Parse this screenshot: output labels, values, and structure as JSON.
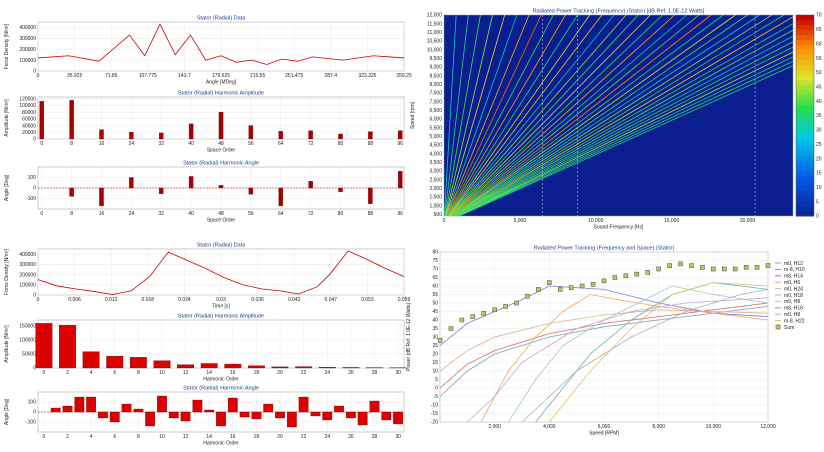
{
  "chart_data": [
    {
      "type": "line",
      "title": "Stator (Radial) Data",
      "xlabel": "Angle [MDeg]",
      "ylabel": "Force Density [N/m²]",
      "xticks": [
        "0",
        "35.925",
        "71.85",
        "107.775",
        "143.7",
        "179.625",
        "215.55",
        "251.475",
        "287.4",
        "323.325",
        "359.25"
      ],
      "yticks": [
        "400000",
        "300000",
        "200000",
        "100000",
        "0"
      ],
      "xlim": [
        0,
        359.25
      ],
      "ylim": [
        0,
        450000
      ],
      "grid": true,
      "series": [
        {
          "color": "#cc0000",
          "x": [
            0,
            4,
            8,
            12,
            14,
            16,
            18,
            20,
            22,
            24,
            26,
            28,
            30,
            32,
            34,
            36,
            40,
            44,
            48
          ],
          "y": [
            120000,
            140000,
            90000,
            330000,
            140000,
            430000,
            150000,
            330000,
            100000,
            140000,
            80000,
            100000,
            60000,
            110000,
            90000,
            130000,
            100000,
            140000,
            120000
          ]
        }
      ]
    },
    {
      "type": "bar",
      "title": "Stator (Radial) Harmonic Amplitude",
      "xlabel": "Space Order",
      "ylabel": "Amplitude [N/m²]",
      "xticks": [
        "0",
        "8",
        "16",
        "24",
        "32",
        "40",
        "48",
        "56",
        "64",
        "72",
        "80",
        "88",
        "96"
      ],
      "yticks": [
        "120000",
        "100000",
        "80000",
        "60000",
        "40000",
        "20000",
        "0"
      ],
      "xlim": [
        -1,
        97
      ],
      "ylim": [
        0,
        125000
      ],
      "grid": true,
      "color": "#aa0000",
      "x": [
        0,
        8,
        16,
        24,
        32,
        40,
        48,
        56,
        64,
        72,
        80,
        88,
        96
      ],
      "values": [
        112000,
        115000,
        28000,
        20000,
        18000,
        45000,
        80000,
        40000,
        23000,
        25000,
        15000,
        22000,
        25000
      ]
    },
    {
      "type": "bar",
      "title": "Stator (Radial) Harmonic Angle",
      "xlabel": "Space Order",
      "ylabel": "Angle [Deg]",
      "xticks": [
        "0",
        "8",
        "16",
        "24",
        "32",
        "40",
        "48",
        "56",
        "64",
        "72",
        "80",
        "88",
        "96"
      ],
      "yticks": [
        "100",
        "0",
        "-100"
      ],
      "xlim": [
        -1,
        97
      ],
      "ylim": [
        -200,
        200
      ],
      "grid": true,
      "color": "#aa0000",
      "x": [
        8,
        16,
        24,
        32,
        40,
        48,
        56,
        64,
        72,
        80,
        88,
        96
      ],
      "values": [
        -80,
        -170,
        100,
        -55,
        110,
        25,
        -60,
        -170,
        65,
        -35,
        -150,
        160
      ]
    },
    {
      "type": "line",
      "title": "Stator (Radial) Data",
      "xlabel": "Time [s]",
      "ylabel": "Force Density [N/m²]",
      "xticks": [
        "0",
        "0.006",
        "0.012",
        "0.018",
        "0.024",
        "0.03",
        "0.036",
        "0.042",
        "0.047",
        "0.053",
        "0.059"
      ],
      "yticks": [
        "400000",
        "300000",
        "200000",
        "100000",
        "0"
      ],
      "xlim": [
        0,
        0.059
      ],
      "ylim": [
        0,
        450000
      ],
      "grid": true,
      "series": [
        {
          "color": "#cc0000",
          "x": [
            0,
            0.003,
            0.006,
            0.009,
            0.012,
            0.015,
            0.018,
            0.021,
            0.024,
            0.027,
            0.03,
            0.033,
            0.036,
            0.039,
            0.042,
            0.045,
            0.047,
            0.05,
            0.053,
            0.056,
            0.059
          ],
          "y": [
            150000,
            90000,
            60000,
            35000,
            5000,
            40000,
            180000,
            420000,
            340000,
            260000,
            170000,
            100000,
            60000,
            40000,
            10000,
            80000,
            200000,
            430000,
            350000,
            260000,
            180000
          ]
        }
      ]
    },
    {
      "type": "bar",
      "title": "Stator (Radial) Harmonic Amplitude",
      "xlabel": "Harmonic Order",
      "ylabel": "Amplitude [N/m²]",
      "xticks": [
        "0",
        "2",
        "4",
        "6",
        "8",
        "10",
        "12",
        "14",
        "16",
        "18",
        "20",
        "22",
        "24",
        "26",
        "28",
        "30"
      ],
      "yticks": [
        "150000",
        "100000",
        "50000",
        "0"
      ],
      "xlim": [
        -0.5,
        30.5
      ],
      "ylim": [
        0,
        170000
      ],
      "grid": true,
      "color": "#dd0000",
      "x": [
        0,
        2,
        4,
        6,
        8,
        10,
        12,
        14,
        16,
        18,
        20,
        22,
        24,
        26,
        28,
        30
      ],
      "values": [
        158000,
        152000,
        58000,
        42000,
        38000,
        26000,
        12000,
        16000,
        14000,
        8000,
        4000,
        5000,
        3000,
        2000,
        1500,
        1000
      ]
    },
    {
      "type": "bar",
      "title": "Stator (Radial) Harmonic Angle",
      "xlabel": "Harmonic Order",
      "ylabel": "Angle [Deg]",
      "xticks": [
        "0",
        "2",
        "4",
        "6",
        "8",
        "10",
        "12",
        "14",
        "16",
        "18",
        "20",
        "22",
        "24",
        "26",
        "28",
        "30"
      ],
      "yticks": [
        "100",
        "0",
        "-100"
      ],
      "xlim": [
        -0.5,
        30.5
      ],
      "ylim": [
        -200,
        200
      ],
      "grid": true,
      "color": "#dd0000",
      "x": [
        1,
        2,
        3,
        4,
        5,
        6,
        7,
        8,
        9,
        10,
        11,
        12,
        13,
        14,
        15,
        16,
        17,
        18,
        19,
        20,
        21,
        22,
        23,
        24,
        25,
        26,
        27,
        28,
        29,
        30
      ],
      "values": [
        40,
        60,
        150,
        150,
        -60,
        -100,
        80,
        30,
        -140,
        160,
        -60,
        -90,
        120,
        20,
        -140,
        140,
        -50,
        -70,
        80,
        -60,
        -150,
        150,
        -40,
        -80,
        60,
        -60,
        -130,
        110,
        -80,
        -120
      ]
    },
    {
      "type": "heatmap",
      "title": "Radiated Power Tracking (Frequency) (Stator) [dB Ref. 1.0E-12 Watts]",
      "xlabel": "Sound Frequency [Hz]",
      "ylabel": "Speed [rpm]",
      "xticks": [
        "0",
        "5,000",
        "10,000",
        "15,000",
        "20,000"
      ],
      "yticks": [
        "12,000",
        "11,500",
        "11,000",
        "10,500",
        "10,000",
        "9,500",
        "9,000",
        "8,500",
        "8,000",
        "7,500",
        "7,000",
        "6,500",
        "6,000",
        "5,500",
        "5,000",
        "4,500",
        "4,000",
        "3,500",
        "3,000",
        "2,500",
        "2,000",
        "1,500",
        "1,000",
        "500"
      ],
      "xlim": [
        0,
        23000
      ],
      "ylim": [
        400,
        12000
      ],
      "colorbar_ticks": [
        "70",
        "65",
        "60",
        "55",
        "50",
        "45",
        "40",
        "35",
        "30",
        "25",
        "20",
        "15",
        "10",
        "5",
        "0"
      ],
      "colorbar_range": [
        0,
        70
      ],
      "background": "#0b1e8f",
      "orders_per_rev": [
        4,
        8,
        12,
        16,
        20,
        24,
        28,
        32,
        36,
        40,
        44,
        48,
        52,
        56,
        60,
        64,
        68,
        72,
        76,
        80,
        84,
        88,
        92,
        96,
        100,
        104,
        108,
        112,
        116,
        120,
        124,
        128,
        132,
        136,
        140,
        144,
        148,
        152
      ],
      "line_levels_db": [
        30,
        35,
        40,
        45,
        50,
        30,
        55,
        62,
        40,
        58,
        36,
        48,
        52,
        30,
        45,
        40,
        50,
        38,
        55,
        33,
        42,
        60,
        35,
        48,
        40,
        30,
        45,
        38,
        52,
        35,
        42,
        30,
        40,
        36,
        48,
        32,
        38,
        35
      ],
      "marker_frequencies": [
        6500,
        8800,
        20500
      ]
    },
    {
      "type": "line",
      "title": "Radiated Power Tracking (Frequency and Space) (Stator)",
      "xlabel": "Speed [RPM]",
      "ylabel": "Power [dB Ref. 1.0E-12 Watts]",
      "xticks": [
        "2,000",
        "4,000",
        "6,000",
        "8,000",
        "10,000",
        "12,000"
      ],
      "yticks": [
        "80",
        "75",
        "70",
        "65",
        "60",
        "55",
        "50",
        "45",
        "40",
        "35",
        "30",
        "25",
        "20",
        "15",
        "10",
        "5",
        "0",
        "-5",
        "-10",
        "-15",
        "-20"
      ],
      "xlim": [
        0,
        12000
      ],
      "ylim": [
        -20,
        80
      ],
      "grid": true,
      "legend": "right",
      "series": [
        {
          "name": "m0, H12",
          "color": "#7aa6c2",
          "x": [
            0,
            1000,
            2000,
            4000,
            6000,
            8000,
            10000,
            12000
          ],
          "y": [
            -5,
            10,
            20,
            30,
            36,
            40,
            44,
            48
          ]
        },
        {
          "name": "m-8, H10",
          "color": "#e06666",
          "x": [
            0,
            1000,
            2000,
            4000,
            6000,
            8000,
            10000,
            12000
          ],
          "y": [
            0,
            14,
            22,
            32,
            38,
            42,
            46,
            50
          ]
        },
        {
          "name": "m8, H14",
          "color": "#7b7bd6",
          "x": [
            0,
            1000,
            2000,
            3000,
            4000,
            6000,
            8000,
            10000,
            12000
          ],
          "y": [
            25,
            38,
            45,
            52,
            60,
            58,
            50,
            44,
            42
          ]
        },
        {
          "name": "m0, H6",
          "color": "#f2a65a",
          "x": [
            1500,
            2500,
            3500,
            4500,
            5500,
            6500,
            8000,
            10000,
            12000
          ],
          "y": [
            -20,
            10,
            30,
            45,
            55,
            52,
            48,
            44,
            40
          ]
        },
        {
          "name": "m0, H24",
          "color": "#9fd0ae",
          "x": [
            2500,
            3500,
            4500,
            6000,
            7000,
            8500,
            10000,
            12000
          ],
          "y": [
            -20,
            5,
            25,
            40,
            48,
            60,
            55,
            50
          ]
        },
        {
          "name": "m0, H18",
          "color": "#c9a0dc",
          "x": [
            1000,
            2000,
            3000,
            5000,
            7000,
            9000,
            11000,
            12000
          ],
          "y": [
            -20,
            -5,
            15,
            35,
            45,
            50,
            52,
            53
          ]
        },
        {
          "name": "m0, H8",
          "color": "#d9b38c",
          "x": [
            0,
            1000,
            2000,
            4000,
            6000,
            8000,
            10000,
            12000
          ],
          "y": [
            10,
            22,
            30,
            38,
            43,
            46,
            45,
            44
          ]
        },
        {
          "name": "m8, H18",
          "color": "#66b2b2",
          "x": [
            3500,
            4500,
            5500,
            7000,
            8500,
            10000,
            12000
          ],
          "y": [
            -20,
            0,
            20,
            40,
            55,
            62,
            58
          ]
        },
        {
          "name": "m0, H8",
          "color": "#b0b0b0",
          "x": [
            3000,
            5000,
            7000,
            9000,
            11000,
            12000
          ],
          "y": [
            -20,
            10,
            30,
            45,
            55,
            58
          ]
        },
        {
          "name": "m-8, H22",
          "color": "#e0c060",
          "x": [
            4000,
            5500,
            7000,
            8500,
            10000,
            12000
          ],
          "y": [
            -20,
            10,
            35,
            55,
            62,
            60
          ]
        },
        {
          "name": "Sum",
          "marker": "square",
          "color": "#c8c45a",
          "x": [
            0,
            400,
            800,
            1200,
            1600,
            2000,
            2400,
            2800,
            3200,
            3600,
            4000,
            4400,
            4800,
            5200,
            5600,
            6000,
            6400,
            6800,
            7200,
            7600,
            8000,
            8400,
            8800,
            9200,
            9600,
            10000,
            10400,
            10800,
            11200,
            11600,
            12000
          ],
          "y": [
            28,
            35,
            40,
            42,
            44,
            46,
            48,
            50,
            54,
            58,
            62,
            58,
            59,
            60,
            61,
            63,
            65,
            66,
            67,
            68,
            70,
            72,
            73,
            72,
            71,
            70,
            70,
            70,
            71,
            71,
            72
          ]
        }
      ]
    }
  ]
}
